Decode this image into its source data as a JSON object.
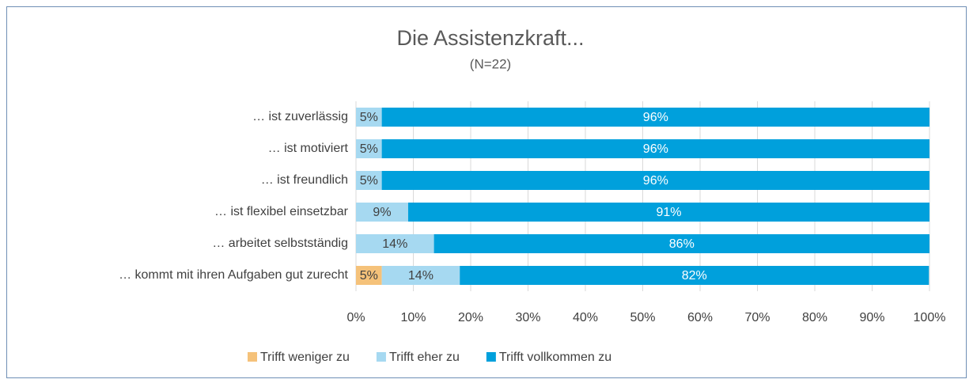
{
  "chart_data": {
    "type": "stacked_barh",
    "title": "Die Assistenzkraft...",
    "subtitle": "(N=22)",
    "categories": [
      "… ist zuverlässig",
      "… ist motiviert",
      "… ist freundlich",
      "… ist flexibel einsetzbar",
      "… arbeitet selbstständig",
      "… kommt mit ihren Aufgaben gut zurecht"
    ],
    "series": [
      {
        "name": "Trifft weniger zu",
        "color": "#f5c27a",
        "values": [
          null,
          null,
          null,
          null,
          null,
          4.5
        ],
        "value_labels": [
          null,
          null,
          null,
          null,
          null,
          "5%"
        ]
      },
      {
        "name": "Trifft eher zu",
        "color": "#a6d9f1",
        "values": [
          4.5,
          4.5,
          4.5,
          9.1,
          13.6,
          13.6
        ],
        "value_labels": [
          "5%",
          "5%",
          "5%",
          "9%",
          "14%",
          "14%"
        ]
      },
      {
        "name": "Trifft vollkommen zu",
        "color": "#00a0dc",
        "values": [
          95.5,
          95.5,
          95.5,
          90.9,
          86.4,
          81.8
        ],
        "value_labels": [
          "96%",
          "96%",
          "96%",
          "91%",
          "86%",
          "82%"
        ]
      }
    ],
    "xlim": [
      0,
      100
    ],
    "xticks": [
      {
        "value": 0,
        "label": "0%"
      },
      {
        "value": 10,
        "label": "10%"
      },
      {
        "value": 20,
        "label": "20%"
      },
      {
        "value": 30,
        "label": "30%"
      },
      {
        "value": 40,
        "label": "40%"
      },
      {
        "value": 50,
        "label": "50%"
      },
      {
        "value": 60,
        "label": "60%"
      },
      {
        "value": 70,
        "label": "70%"
      },
      {
        "value": 80,
        "label": "80%"
      },
      {
        "value": 90,
        "label": "90%"
      },
      {
        "value": 100,
        "label": "100%"
      }
    ],
    "grid": true,
    "legend": "bottom"
  }
}
